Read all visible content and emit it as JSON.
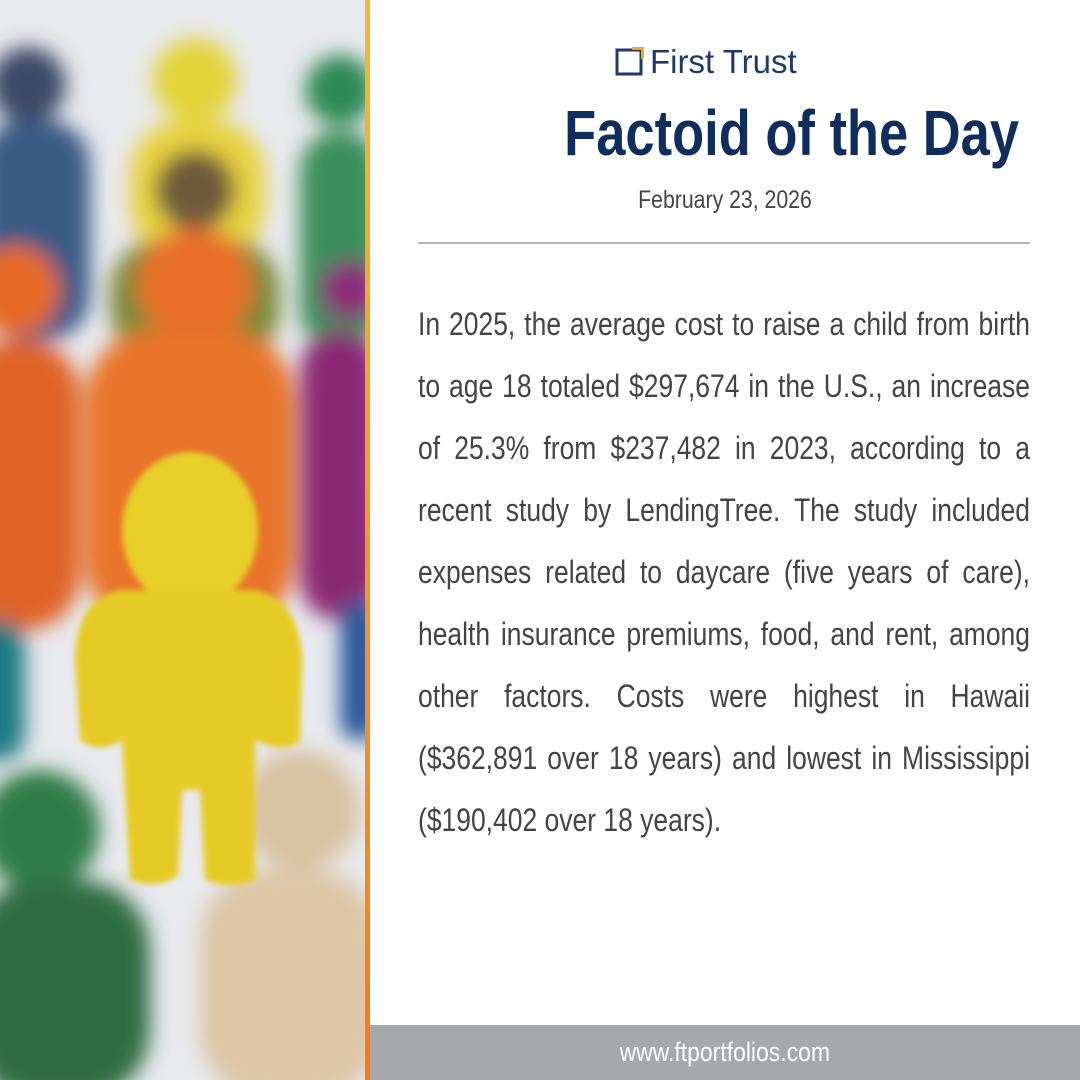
{
  "header": {
    "logo": "First Trust",
    "title": "Factoid of the Day",
    "date": "February 23, 2026"
  },
  "body": {
    "text": "In 2025, the average cost to raise a child from birth to age 18 totaled $297,674 in the U.S., an increase of 25.3% from $237,482 in 2023, according to a recent study by LendingTree. The study included expenses related to daycare (five years of care), health insurance premiums, food, and rent, among other factors. Costs were highest in Hawaii ($362,891 over 18 years) and lowest in Mississippi ($190,402 over 18 years)."
  },
  "footer": {
    "url": "www.ftportfolios.com"
  }
}
